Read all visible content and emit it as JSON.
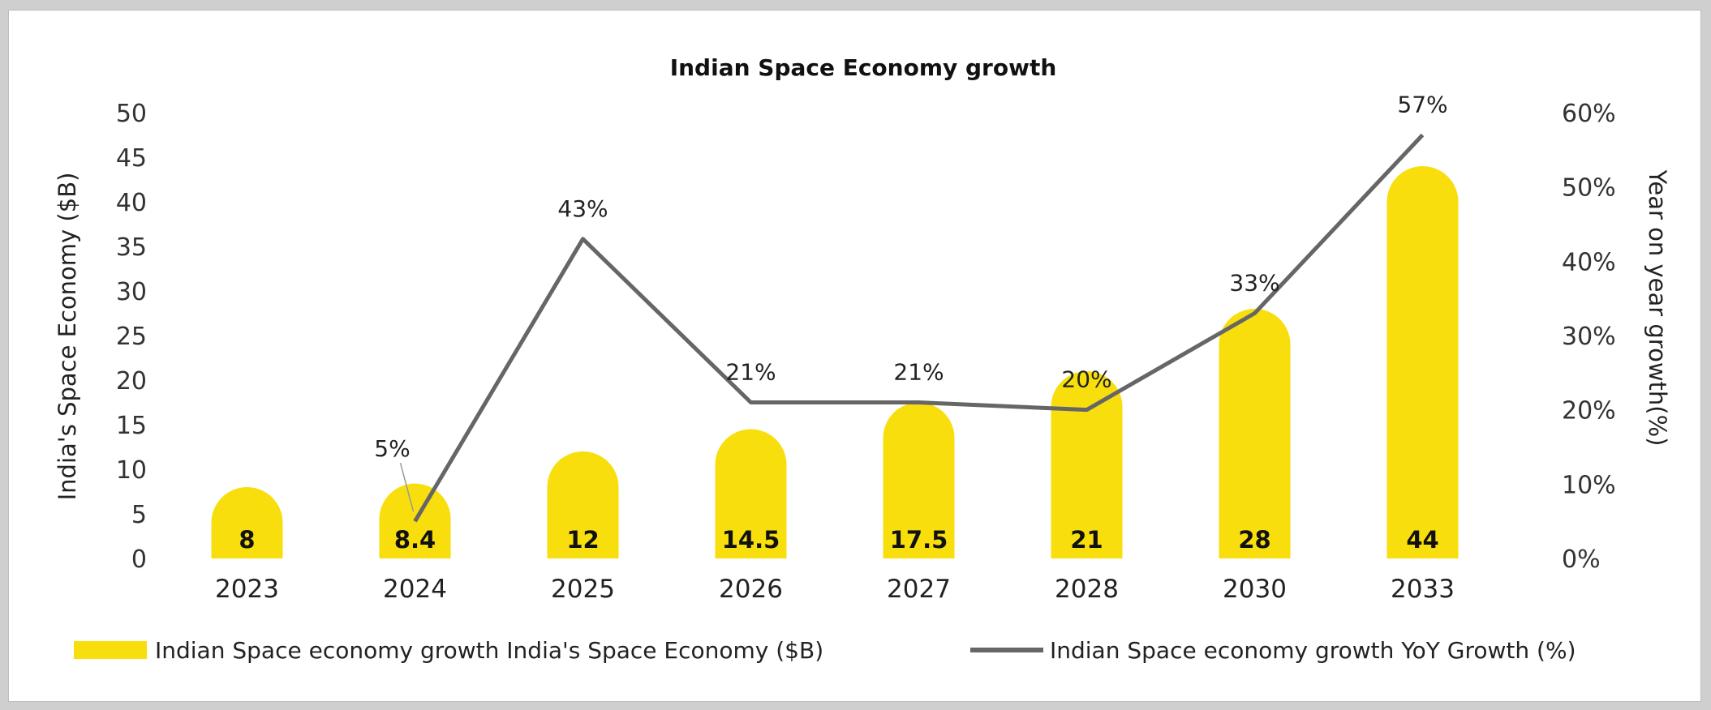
{
  "colors": {
    "bar": "#F8DE0C",
    "line": "#666666",
    "text": "#222222",
    "background": "#ffffff"
  },
  "chart_data": {
    "type": "bar",
    "title": "Indian Space Economy growth",
    "categories": [
      "2023",
      "2024",
      "2025",
      "2026",
      "2027",
      "2028",
      "2030",
      "2033"
    ],
    "ylabel": "India's Space Economy ($B)",
    "y2label": "Year on year growth(%)",
    "ylim": [
      0,
      50
    ],
    "yticks": [
      "0",
      "5",
      "10",
      "15",
      "20",
      "25",
      "30",
      "35",
      "40",
      "45",
      "50"
    ],
    "y2lim": [
      0,
      60
    ],
    "y2ticks": [
      "0%",
      "10%",
      "20%",
      "30%",
      "40%",
      "50%",
      "60%"
    ],
    "series": [
      {
        "name": "Indian Space economy growth India's Space Economy ($B)",
        "type": "bar",
        "axis": "left",
        "values": [
          8,
          8.4,
          12,
          14.5,
          17.5,
          21,
          28,
          44
        ],
        "labels": [
          "8",
          "8.4",
          "12",
          "14.5",
          "17.5",
          "21",
          "28",
          "44"
        ]
      },
      {
        "name": "Indian Space economy growth YoY Growth (%)",
        "type": "line",
        "axis": "right",
        "values": [
          null,
          5,
          43,
          21,
          21,
          20,
          33,
          57
        ],
        "labels": [
          "",
          "5%",
          "43%",
          "21%",
          "21%",
          "20%",
          "33%",
          "57%"
        ]
      }
    ],
    "legend": "bottom",
    "grid": false
  }
}
